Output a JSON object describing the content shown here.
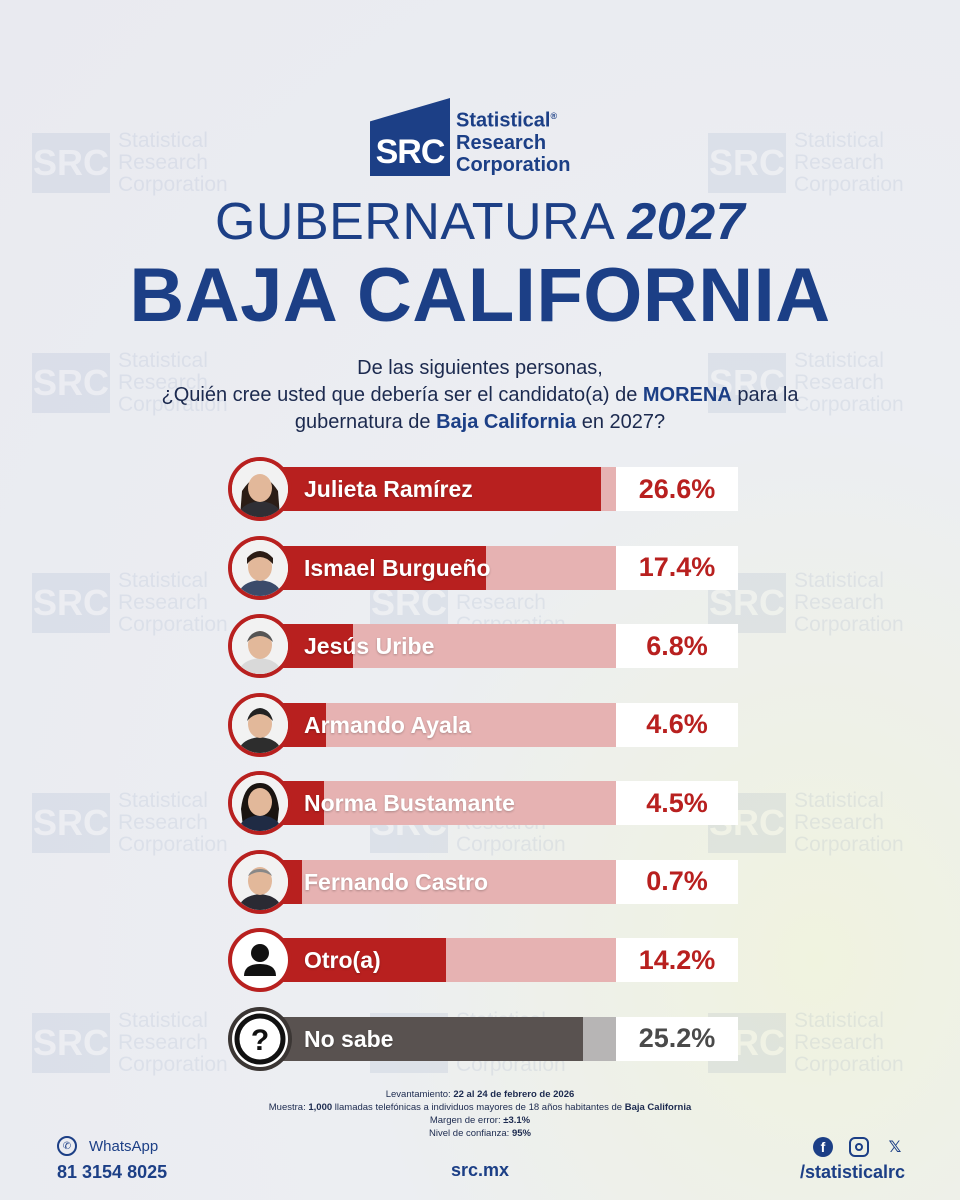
{
  "brand": {
    "logo_letters": "SRC",
    "name_line1": "Statistical",
    "name_line2": "Research",
    "name_line3": "Corporation",
    "registered": "®"
  },
  "title": {
    "line1_prefix": "GUBERNATURA",
    "line1_year": "2027",
    "line2": "BAJA CALIFORNIA"
  },
  "question": {
    "line1": "De las siguientes personas,",
    "line2_a": "¿Quién cree usted que debería ser el candidato(a) de ",
    "line2_b": "MORENA",
    "line2_c": " para la",
    "line3_a": "gubernatura de ",
    "line3_b": "Baja California",
    "line3_c": " en 2027?"
  },
  "chart_data": {
    "type": "bar",
    "orientation": "horizontal",
    "title": "GUBERNATURA 2027 BAJA CALIFORNIA",
    "categories": [
      "Julieta Ramírez",
      "Ismael Burgueño",
      "Jesús Uribe",
      "Armando Ayala",
      "Norma Bustamante",
      "Fernando Castro",
      "Otro(a)",
      "No sabe"
    ],
    "values": [
      26.6,
      17.4,
      6.8,
      4.6,
      4.5,
      0.7,
      14.2,
      25.2
    ],
    "labels": [
      "26.6%",
      "17.4%",
      "6.8%",
      "4.6%",
      "4.5%",
      "0.7%",
      "14.2%",
      "25.2%"
    ],
    "xlim": [
      0,
      30
    ],
    "colors": [
      "#b8201f",
      "#b8201f",
      "#b8201f",
      "#b8201f",
      "#b8201f",
      "#b8201f",
      "#b8201f",
      "#595250"
    ],
    "icons": [
      "person-photo",
      "person-photo",
      "person-photo",
      "person-photo",
      "person-photo",
      "person-photo",
      "user-silhouette-icon",
      "question-mark-icon"
    ]
  },
  "methodology": {
    "levantamiento_label": "Levantamiento:",
    "levantamiento_value": "22 al 24 de febrero de 2026",
    "muestra_label": "Muestra:",
    "muestra_value": "1,000",
    "muestra_text": "llamadas telefónicas a individuos mayores de 18 años habitantes de",
    "muestra_place": "Baja California",
    "margen_label": "Margen de error:",
    "margen_value": "±3.1%",
    "nivel_label": "Nivel de confianza:",
    "nivel_value": "95%"
  },
  "footer": {
    "whatsapp_label": "WhatsApp",
    "whatsapp_number": "81 3154 8025",
    "website": "src.mx",
    "social_handle": "/statisticalrc",
    "social_icons": [
      "facebook-icon",
      "instagram-icon",
      "x-icon"
    ]
  },
  "colors": {
    "brand_blue": "#1c3f86",
    "bar_red": "#b8201f",
    "bar_red_light": "#e6b2b2",
    "bar_grey": "#595250",
    "bar_grey_light": "#b7b5b5"
  }
}
